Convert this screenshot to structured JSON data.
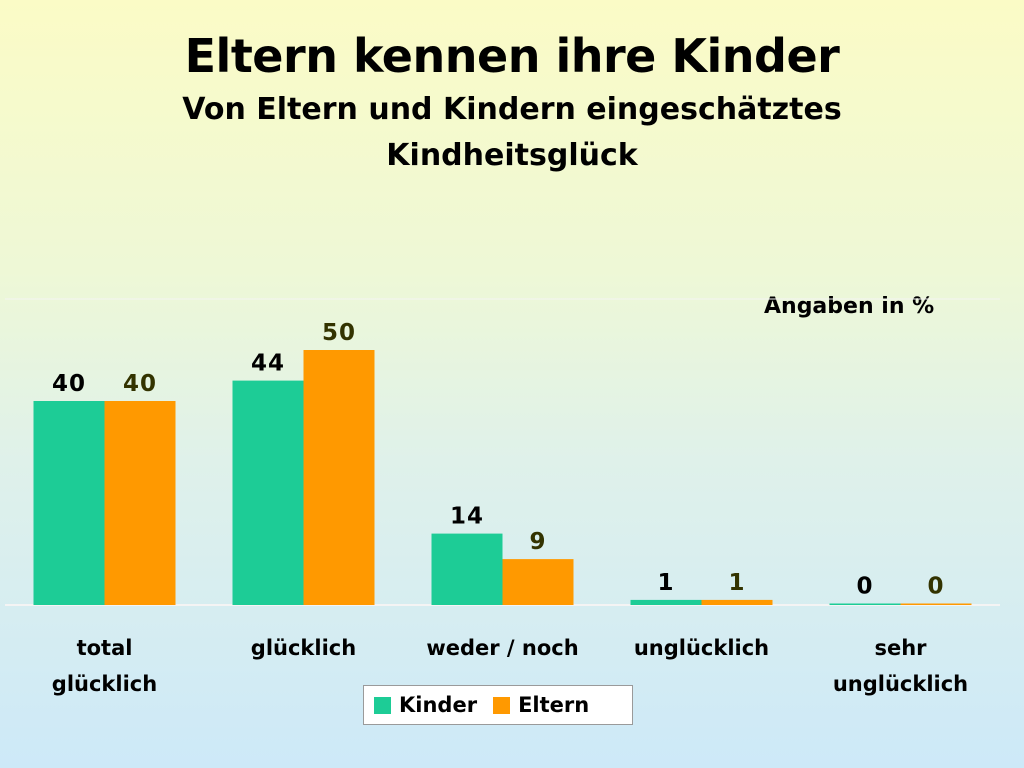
{
  "title": "Eltern kennen ihre Kinder",
  "subtitle_line1": "Von Eltern und Kindern eingeschätztes",
  "subtitle_line2": "Kindheitsglück",
  "note": "Angaben in %",
  "colors": {
    "kinder": "#1dcc96",
    "eltern": "#ff9900",
    "kinder_label": "#000000",
    "eltern_label": "#333300",
    "axis": "#f4f4f4"
  },
  "chart_data": {
    "type": "bar",
    "categories": [
      [
        "total",
        "glücklich"
      ],
      [
        "glücklich"
      ],
      [
        "weder / noch"
      ],
      [
        "unglücklich"
      ],
      [
        "sehr",
        "unglücklich"
      ]
    ],
    "series": [
      {
        "name": "Kinder",
        "values": [
          40,
          44,
          14,
          1,
          0
        ]
      },
      {
        "name": "Eltern",
        "values": [
          40,
          50,
          9,
          1,
          0
        ]
      }
    ],
    "ylim": [
      0,
      60
    ],
    "grid": false,
    "legend": "bottom-center"
  }
}
